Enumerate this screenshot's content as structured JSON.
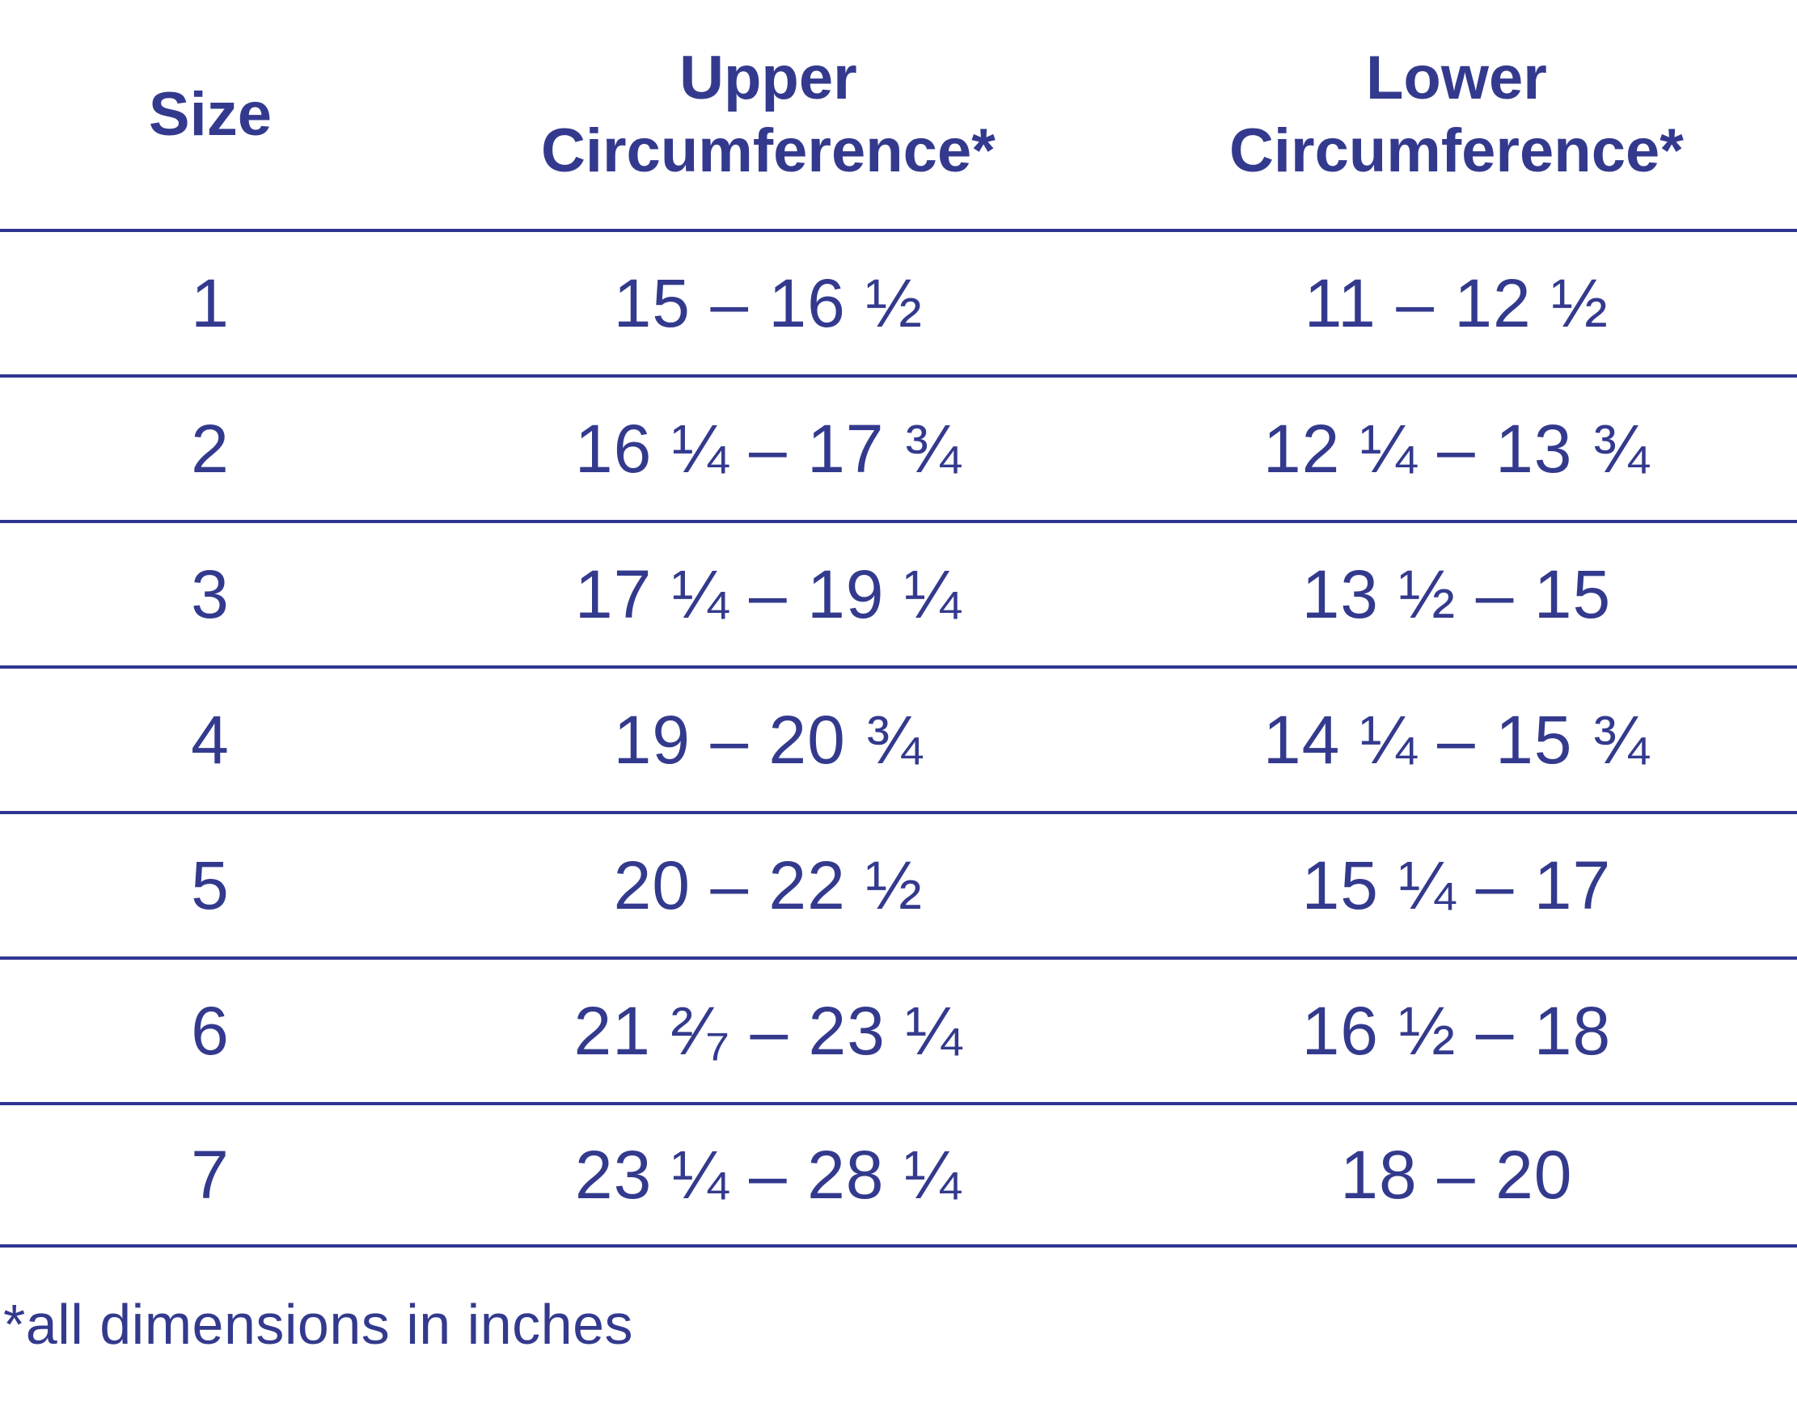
{
  "colors": {
    "ink": "#333a8d",
    "rule": "#2e3591"
  },
  "chart_data": {
    "type": "table",
    "title": "",
    "columns": [
      "Size",
      "Upper Circumference*",
      "Lower Circumference*"
    ],
    "rows": [
      {
        "size": "1",
        "upper": "15 – 16 ½",
        "lower": "11 – 12 ½"
      },
      {
        "size": "2",
        "upper": "16 ¼ – 17 ¾",
        "lower": "12 ¼ – 13 ¾"
      },
      {
        "size": "3",
        "upper": "17 ¼ – 19 ¼",
        "lower": "13 ½ – 15"
      },
      {
        "size": "4",
        "upper": "19 – 20 ¾",
        "lower": "14 ¼ – 15 ¾"
      },
      {
        "size": "5",
        "upper": "20 – 22 ½",
        "lower": "15 ¼ – 17"
      },
      {
        "size": "6",
        "upper": "21 ²⁄₇ – 23 ¼",
        "lower": "16 ½ – 18"
      },
      {
        "size": "7",
        "upper": "23 ¼ – 28 ¼",
        "lower": "18 – 20"
      }
    ],
    "footnote": "*all dimensions in inches",
    "layout_hints": {
      "grid": "horizontal rules only, full width",
      "alignment": "all cells centered, footnote left-aligned"
    }
  }
}
